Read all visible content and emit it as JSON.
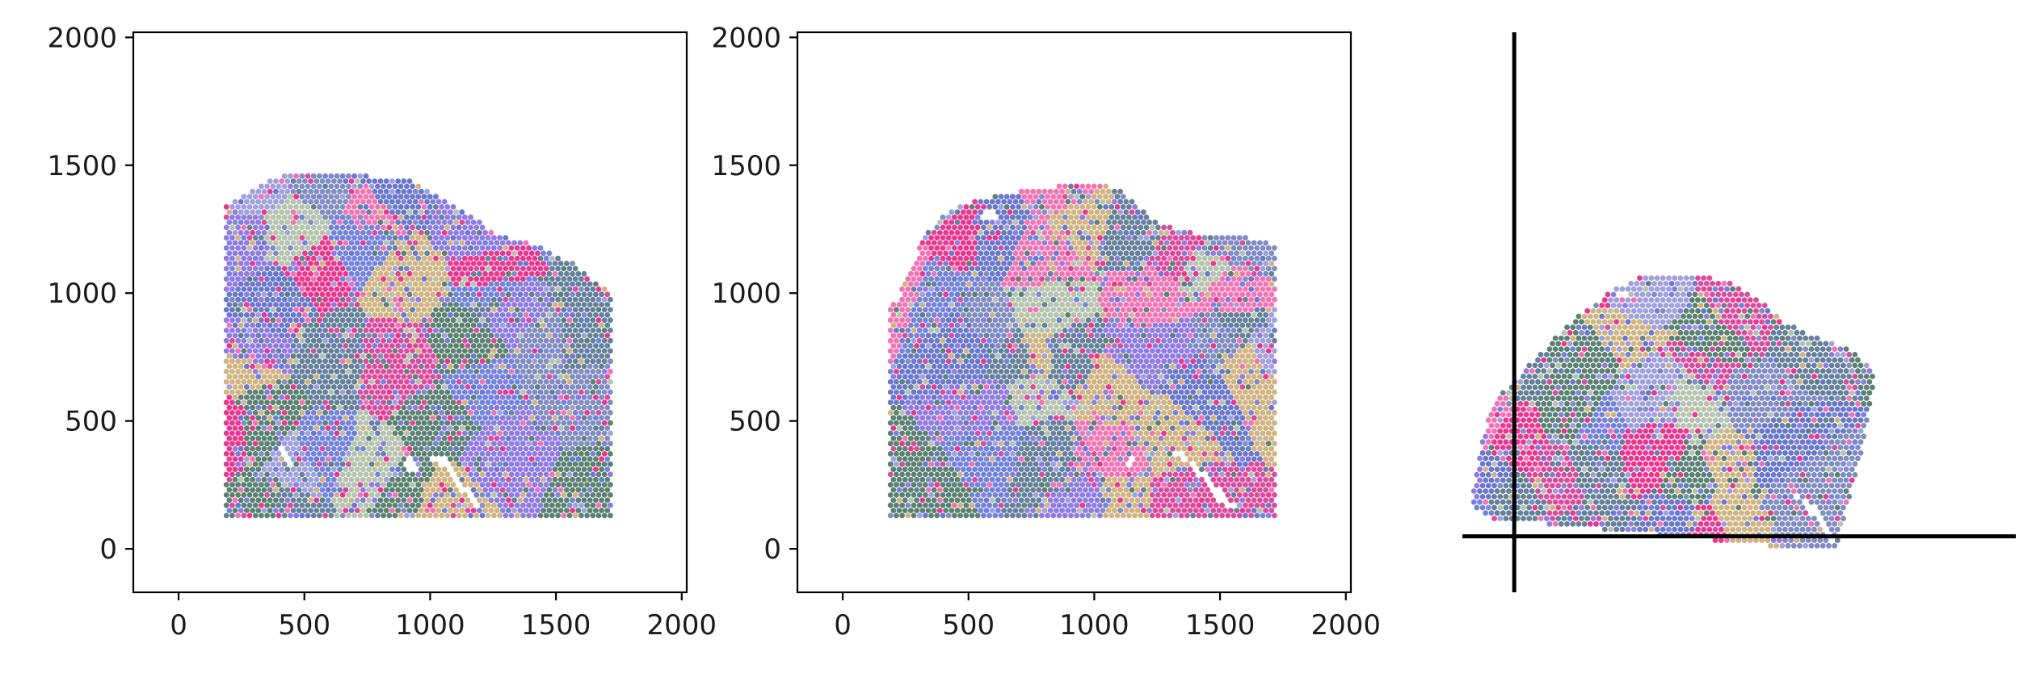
{
  "chart_data": [
    {
      "type": "scatter",
      "title": "",
      "xlabel": "",
      "ylabel": "",
      "xlim": [
        -180,
        2020
      ],
      "ylim": [
        -170,
        2020
      ],
      "xticks": [
        0,
        500,
        1000,
        1500,
        2000
      ],
      "yticks": [
        0,
        500,
        1000,
        1500,
        2000
      ],
      "x_tick_labels": [
        "0",
        "500",
        "1000",
        "1500",
        "2000"
      ],
      "y_tick_labels": [
        "0",
        "500",
        "1000",
        "1500",
        "2000"
      ],
      "grid": false,
      "spot_outline": [
        [
          190,
          130
        ],
        [
          1720,
          130
        ],
        [
          1720,
          1010
        ],
        [
          1640,
          1050
        ],
        [
          1580,
          1110
        ],
        [
          1420,
          1190
        ],
        [
          1320,
          1210
        ],
        [
          1230,
          1250
        ],
        [
          1170,
          1300
        ],
        [
          1110,
          1330
        ],
        [
          1040,
          1370
        ],
        [
          930,
          1440
        ],
        [
          740,
          1460
        ],
        [
          600,
          1470
        ],
        [
          470,
          1470
        ],
        [
          370,
          1450
        ],
        [
          260,
          1390
        ],
        [
          190,
          1350
        ]
      ],
      "holes": [
        [
          [
            380,
            420
          ],
          [
            420,
            400
          ],
          [
            460,
            330
          ],
          [
            430,
            320
          ]
        ],
        [
          [
            880,
            390
          ],
          [
            940,
            340
          ],
          [
            960,
            290
          ],
          [
            920,
            300
          ]
        ],
        [
          [
            1000,
            380
          ],
          [
            1060,
            350
          ],
          [
            1200,
            170
          ],
          [
            1180,
            150
          ],
          [
            1080,
            300
          ],
          [
            1010,
            350
          ]
        ]
      ],
      "series_colors": [
        "#e8127a",
        "#d62a8a",
        "#f05aa6",
        "#5a6cd8",
        "#4f5fc7",
        "#6a78b8",
        "#4a6a8a",
        "#3e6b5a",
        "#7d63e0",
        "#c8a66a",
        "#a8b8a0",
        "#8f8fd8"
      ]
    },
    {
      "type": "scatter",
      "title": "",
      "xlabel": "",
      "ylabel": "",
      "xlim": [
        -180,
        2020
      ],
      "ylim": [
        -170,
        2020
      ],
      "xticks": [
        0,
        500,
        1000,
        1500,
        2000
      ],
      "yticks": [
        0,
        500,
        1000,
        1500,
        2000
      ],
      "x_tick_labels": [
        "0",
        "500",
        "1000",
        "1500",
        "2000"
      ],
      "y_tick_labels": [
        "0",
        "500",
        "1000",
        "1500",
        "2000"
      ],
      "grid": false,
      "spot_outline": [
        [
          190,
          130
        ],
        [
          1720,
          130
        ],
        [
          1720,
          1190
        ],
        [
          1600,
          1220
        ],
        [
          1440,
          1230
        ],
        [
          1350,
          1240
        ],
        [
          1230,
          1290
        ],
        [
          1160,
          1350
        ],
        [
          1110,
          1410
        ],
        [
          980,
          1430
        ],
        [
          880,
          1420
        ],
        [
          770,
          1410
        ],
        [
          650,
          1390
        ],
        [
          520,
          1360
        ],
        [
          400,
          1310
        ],
        [
          330,
          1230
        ],
        [
          270,
          1100
        ],
        [
          230,
          1000
        ],
        [
          190,
          940
        ]
      ],
      "holes": [
        [
          [
            550,
            1310
          ],
          [
            600,
            1330
          ],
          [
            620,
            1290
          ],
          [
            570,
            1280
          ]
        ],
        [
          [
            1140,
            370
          ],
          [
            1170,
            350
          ],
          [
            1150,
            320
          ],
          [
            1120,
            330
          ]
        ],
        [
          [
            1290,
            400
          ],
          [
            1360,
            370
          ],
          [
            1560,
            170
          ],
          [
            1530,
            150
          ],
          [
            1380,
            330
          ],
          [
            1300,
            380
          ]
        ]
      ],
      "series_colors": [
        "#e8127a",
        "#d62a8a",
        "#f05aa6",
        "#5a6cd8",
        "#4f5fc7",
        "#6a78b8",
        "#4a6a8a",
        "#3e6b5a",
        "#7d63e0",
        "#c8a66a",
        "#a8b8a0",
        "#8f8fd8"
      ]
    },
    {
      "type": "scatter",
      "title": "",
      "xlabel": "",
      "ylabel": "",
      "axes_visible": false,
      "crosshair": {
        "x": 0,
        "y": 0
      },
      "xlim": [
        -300,
        2900
      ],
      "ylim": [
        -300,
        2700
      ],
      "spot_outline": [
        [
          1580,
          -60
        ],
        [
          1860,
          -80
        ],
        [
          2000,
          420
        ],
        [
          2090,
          850
        ],
        [
          2010,
          950
        ],
        [
          1900,
          1020
        ],
        [
          1720,
          1080
        ],
        [
          1560,
          1150
        ],
        [
          1440,
          1260
        ],
        [
          1250,
          1370
        ],
        [
          980,
          1400
        ],
        [
          760,
          1400
        ],
        [
          590,
          1330
        ],
        [
          360,
          1180
        ],
        [
          -140,
          700
        ],
        [
          -250,
          200
        ],
        [
          -180,
          100
        ]
      ],
      "holes": [
        [
          [
            600,
            1300
          ],
          [
            650,
            1320
          ],
          [
            670,
            1280
          ],
          [
            620,
            1270
          ]
        ],
        [
          [
            1620,
            220
          ],
          [
            1700,
            200
          ],
          [
            1870,
            -20
          ],
          [
            1840,
            -40
          ],
          [
            1720,
            120
          ],
          [
            1640,
            200
          ]
        ]
      ],
      "series_colors": [
        "#e8127a",
        "#d62a8a",
        "#f05aa6",
        "#5a6cd8",
        "#4f5fc7",
        "#6a78b8",
        "#4a6a8a",
        "#3e6b5a",
        "#7d63e0",
        "#c8a66a",
        "#a8b8a0",
        "#8f8fd8"
      ]
    }
  ]
}
